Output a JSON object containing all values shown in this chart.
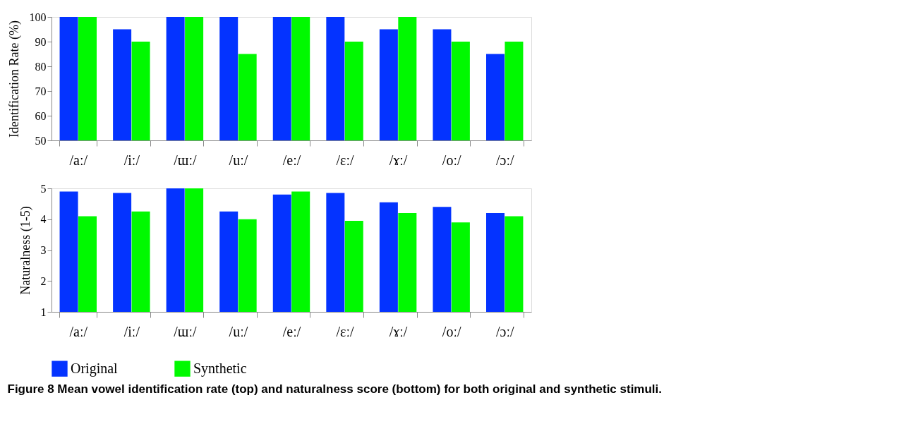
{
  "chart_data": [
    {
      "type": "bar",
      "ylabel": "Identification Rate (%)",
      "categories": [
        "/aː/",
        "/iː/",
        "/ɯː/",
        "/uː/",
        "/eː/",
        "/ɛː/",
        "/ɤː/",
        "/oː/",
        "/ɔː/"
      ],
      "series": [
        {
          "name": "Original",
          "color": "#0433ff",
          "values": [
            100,
            95,
            100,
            100,
            100,
            100,
            95,
            95,
            85
          ]
        },
        {
          "name": "Synthetic",
          "color": "#00f900",
          "values": [
            100,
            90,
            100,
            85,
            100,
            90,
            100,
            90,
            90
          ]
        }
      ],
      "ylim": [
        50,
        100
      ],
      "yticks": [
        50,
        60,
        70,
        80,
        90,
        100
      ],
      "grid": false,
      "legend": "bottom"
    },
    {
      "type": "bar",
      "ylabel": "Naturalness (1-5)",
      "categories": [
        "/aː/",
        "/iː/",
        "/ɯː/",
        "/uː/",
        "/eː/",
        "/ɛː/",
        "/ɤː/",
        "/oː/",
        "/ɔː/"
      ],
      "series": [
        {
          "name": "Original",
          "color": "#0433ff",
          "values": [
            4.9,
            4.85,
            5,
            4.25,
            4.8,
            4.85,
            4.55,
            4.4,
            4.2
          ]
        },
        {
          "name": "Synthetic",
          "color": "#00f900",
          "values": [
            4.1,
            4.25,
            5,
            4.0,
            4.9,
            3.95,
            4.2,
            3.9,
            4.1
          ]
        }
      ],
      "ylim": [
        1,
        5
      ],
      "yticks": [
        1,
        2,
        3,
        4,
        5
      ],
      "grid": false,
      "legend": "bottom",
      "annotations": [
        "Figure 8 Mean vowel identification rate (top) and naturalness score (bottom) for both original and synthetic stimuli."
      ]
    }
  ]
}
